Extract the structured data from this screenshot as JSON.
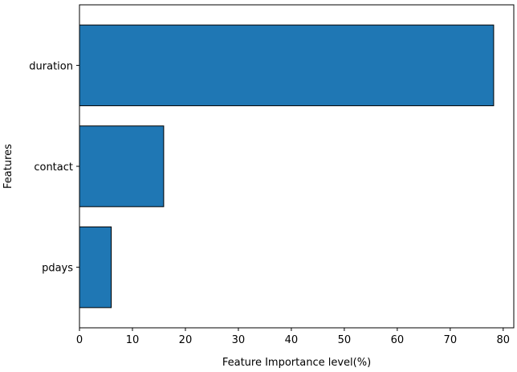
{
  "chart_data": {
    "type": "bar",
    "orientation": "horizontal",
    "categories": [
      "duration",
      "contact",
      "pdays"
    ],
    "values": [
      78.2,
      15.9,
      6.0
    ],
    "xlabel": "Feature Importance level(%)",
    "ylabel": "Features",
    "xlim": [
      0,
      82
    ],
    "xticks": [
      0,
      10,
      20,
      30,
      40,
      50,
      60,
      70,
      80
    ],
    "grid": false,
    "bar_color": "#1f77b4",
    "bar_edge_color": "#000000"
  }
}
